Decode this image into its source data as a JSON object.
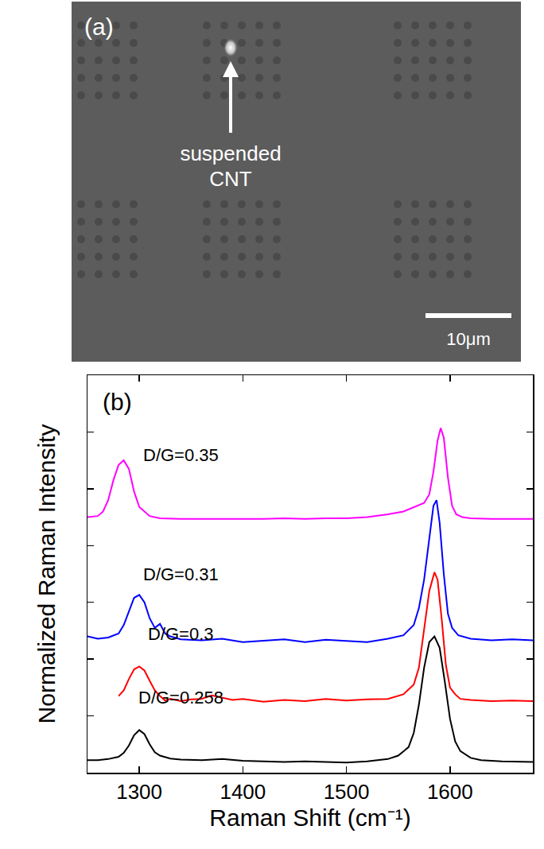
{
  "image_panel": {
    "label": "(a)",
    "annotation": "suspended CNT",
    "scale_bar": "10μm"
  },
  "chart_data": {
    "type": "line",
    "label": "(b)",
    "x_label": "Raman Shift (cm⁻¹)",
    "y_label": "Normalized Raman Intensity",
    "xlim": [
      1250,
      1680
    ],
    "xticks": [
      1300,
      1400,
      1500,
      1600
    ],
    "ylim": [
      0,
      7
    ],
    "yticks": [
      1,
      2,
      3,
      4,
      5,
      6
    ],
    "tick_labels": "x",
    "grid": false,
    "series": [
      {
        "name": "D/G=0.258",
        "color": "#000000",
        "x": [
          1250,
          1260,
          1270,
          1280,
          1285,
          1290,
          1295,
          1300,
          1305,
          1310,
          1315,
          1320,
          1330,
          1340,
          1360,
          1380,
          1400,
          1420,
          1440,
          1460,
          1480,
          1500,
          1520,
          1540,
          1550,
          1560,
          1565,
          1570,
          1575,
          1580,
          1585,
          1590,
          1595,
          1600,
          1605,
          1610,
          1620,
          1630,
          1650,
          1670,
          1680
        ],
        "values": [
          0.22,
          0.22,
          0.24,
          0.28,
          0.35,
          0.48,
          0.66,
          0.75,
          0.68,
          0.5,
          0.36,
          0.3,
          0.25,
          0.23,
          0.22,
          0.24,
          0.21,
          0.2,
          0.19,
          0.2,
          0.19,
          0.18,
          0.2,
          0.24,
          0.3,
          0.45,
          0.7,
          1.2,
          1.85,
          2.3,
          2.4,
          2.2,
          1.6,
          0.95,
          0.55,
          0.38,
          0.26,
          0.22,
          0.2,
          0.19,
          0.19
        ]
      },
      {
        "name": "D/G=0.3",
        "color": "#ff0000",
        "x": [
          1280,
          1285,
          1290,
          1295,
          1300,
          1305,
          1310,
          1315,
          1320,
          1325,
          1330,
          1340,
          1350,
          1360,
          1370,
          1380,
          1390,
          1400,
          1420,
          1440,
          1460,
          1480,
          1500,
          1520,
          1540,
          1555,
          1565,
          1570,
          1575,
          1580,
          1585,
          1588,
          1592,
          1596,
          1600,
          1605,
          1610,
          1620,
          1640,
          1660,
          1680
        ],
        "values": [
          1.35,
          1.45,
          1.65,
          1.82,
          1.87,
          1.8,
          1.62,
          1.45,
          1.35,
          1.27,
          1.3,
          1.26,
          1.29,
          1.3,
          1.36,
          1.32,
          1.28,
          1.3,
          1.25,
          1.28,
          1.26,
          1.3,
          1.27,
          1.29,
          1.3,
          1.38,
          1.55,
          1.85,
          2.5,
          3.2,
          3.53,
          3.4,
          2.7,
          1.9,
          1.5,
          1.38,
          1.3,
          1.28,
          1.26,
          1.27,
          1.26
        ]
      },
      {
        "name": "D/G=0.31",
        "color": "#0000ff",
        "x": [
          1250,
          1260,
          1270,
          1280,
          1285,
          1290,
          1295,
          1300,
          1305,
          1310,
          1315,
          1320,
          1325,
          1330,
          1340,
          1360,
          1380,
          1400,
          1420,
          1440,
          1460,
          1480,
          1500,
          1520,
          1540,
          1555,
          1565,
          1570,
          1575,
          1580,
          1584,
          1587,
          1590,
          1594,
          1598,
          1602,
          1608,
          1620,
          1640,
          1660,
          1680
        ],
        "values": [
          2.4,
          2.36,
          2.38,
          2.45,
          2.6,
          2.85,
          3.08,
          3.13,
          3.0,
          2.72,
          2.55,
          2.62,
          2.45,
          2.4,
          2.35,
          2.33,
          2.36,
          2.3,
          2.33,
          2.35,
          2.3,
          2.34,
          2.32,
          2.3,
          2.36,
          2.42,
          2.6,
          2.9,
          3.4,
          4.1,
          4.7,
          4.8,
          4.4,
          3.5,
          2.8,
          2.55,
          2.42,
          2.36,
          2.33,
          2.35,
          2.33
        ]
      },
      {
        "name": "D/G=0.35",
        "color": "#ff00ff",
        "x": [
          1250,
          1260,
          1265,
          1270,
          1275,
          1280,
          1285,
          1290,
          1295,
          1300,
          1310,
          1320,
          1340,
          1360,
          1380,
          1400,
          1420,
          1440,
          1460,
          1480,
          1500,
          1520,
          1540,
          1555,
          1565,
          1575,
          1580,
          1584,
          1588,
          1591,
          1594,
          1598,
          1602,
          1606,
          1612,
          1620,
          1640,
          1660,
          1680
        ],
        "values": [
          4.5,
          4.52,
          4.6,
          4.8,
          5.15,
          5.42,
          5.5,
          5.35,
          4.95,
          4.68,
          4.52,
          4.48,
          4.47,
          4.47,
          4.46,
          4.47,
          4.47,
          4.48,
          4.47,
          4.48,
          4.48,
          4.5,
          4.55,
          4.6,
          4.68,
          4.75,
          4.9,
          5.3,
          5.85,
          6.07,
          5.9,
          5.2,
          4.7,
          4.55,
          4.5,
          4.48,
          4.47,
          4.47,
          4.47
        ]
      }
    ]
  }
}
